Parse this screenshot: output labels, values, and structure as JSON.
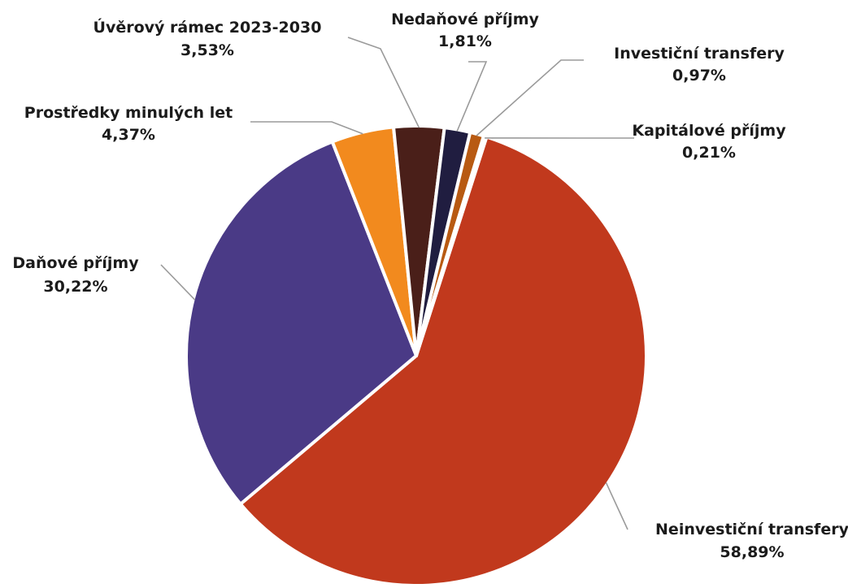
{
  "chart_data": {
    "type": "pie",
    "title": "",
    "start_angle_deg": -72.2,
    "direction": "clockwise",
    "slices": [
      {
        "label": "Neinvestiční transfery",
        "value": 58.89,
        "value_label": "58,89%",
        "color": "#c1391d"
      },
      {
        "label": "Daňové příjmy",
        "value": 30.22,
        "value_label": "30,22%",
        "color": "#4a3a86"
      },
      {
        "label": "Prostředky minulých let",
        "value": 4.37,
        "value_label": "4,37%",
        "color": "#f28a1e"
      },
      {
        "label": "Úvěrový rámec 2023-2030",
        "value": 3.53,
        "value_label": "3,53%",
        "color": "#4a1f19"
      },
      {
        "label": "Nedaňové příjmy",
        "value": 1.81,
        "value_label": "1,81%",
        "color": "#201d40"
      },
      {
        "label": "Investiční transfery",
        "value": 0.97,
        "value_label": "0,97%",
        "color": "#b85a12"
      },
      {
        "label": "Kapitálové příjmy",
        "value": 0.21,
        "value_label": "0,21%",
        "color": "#e8c9a0"
      }
    ]
  }
}
